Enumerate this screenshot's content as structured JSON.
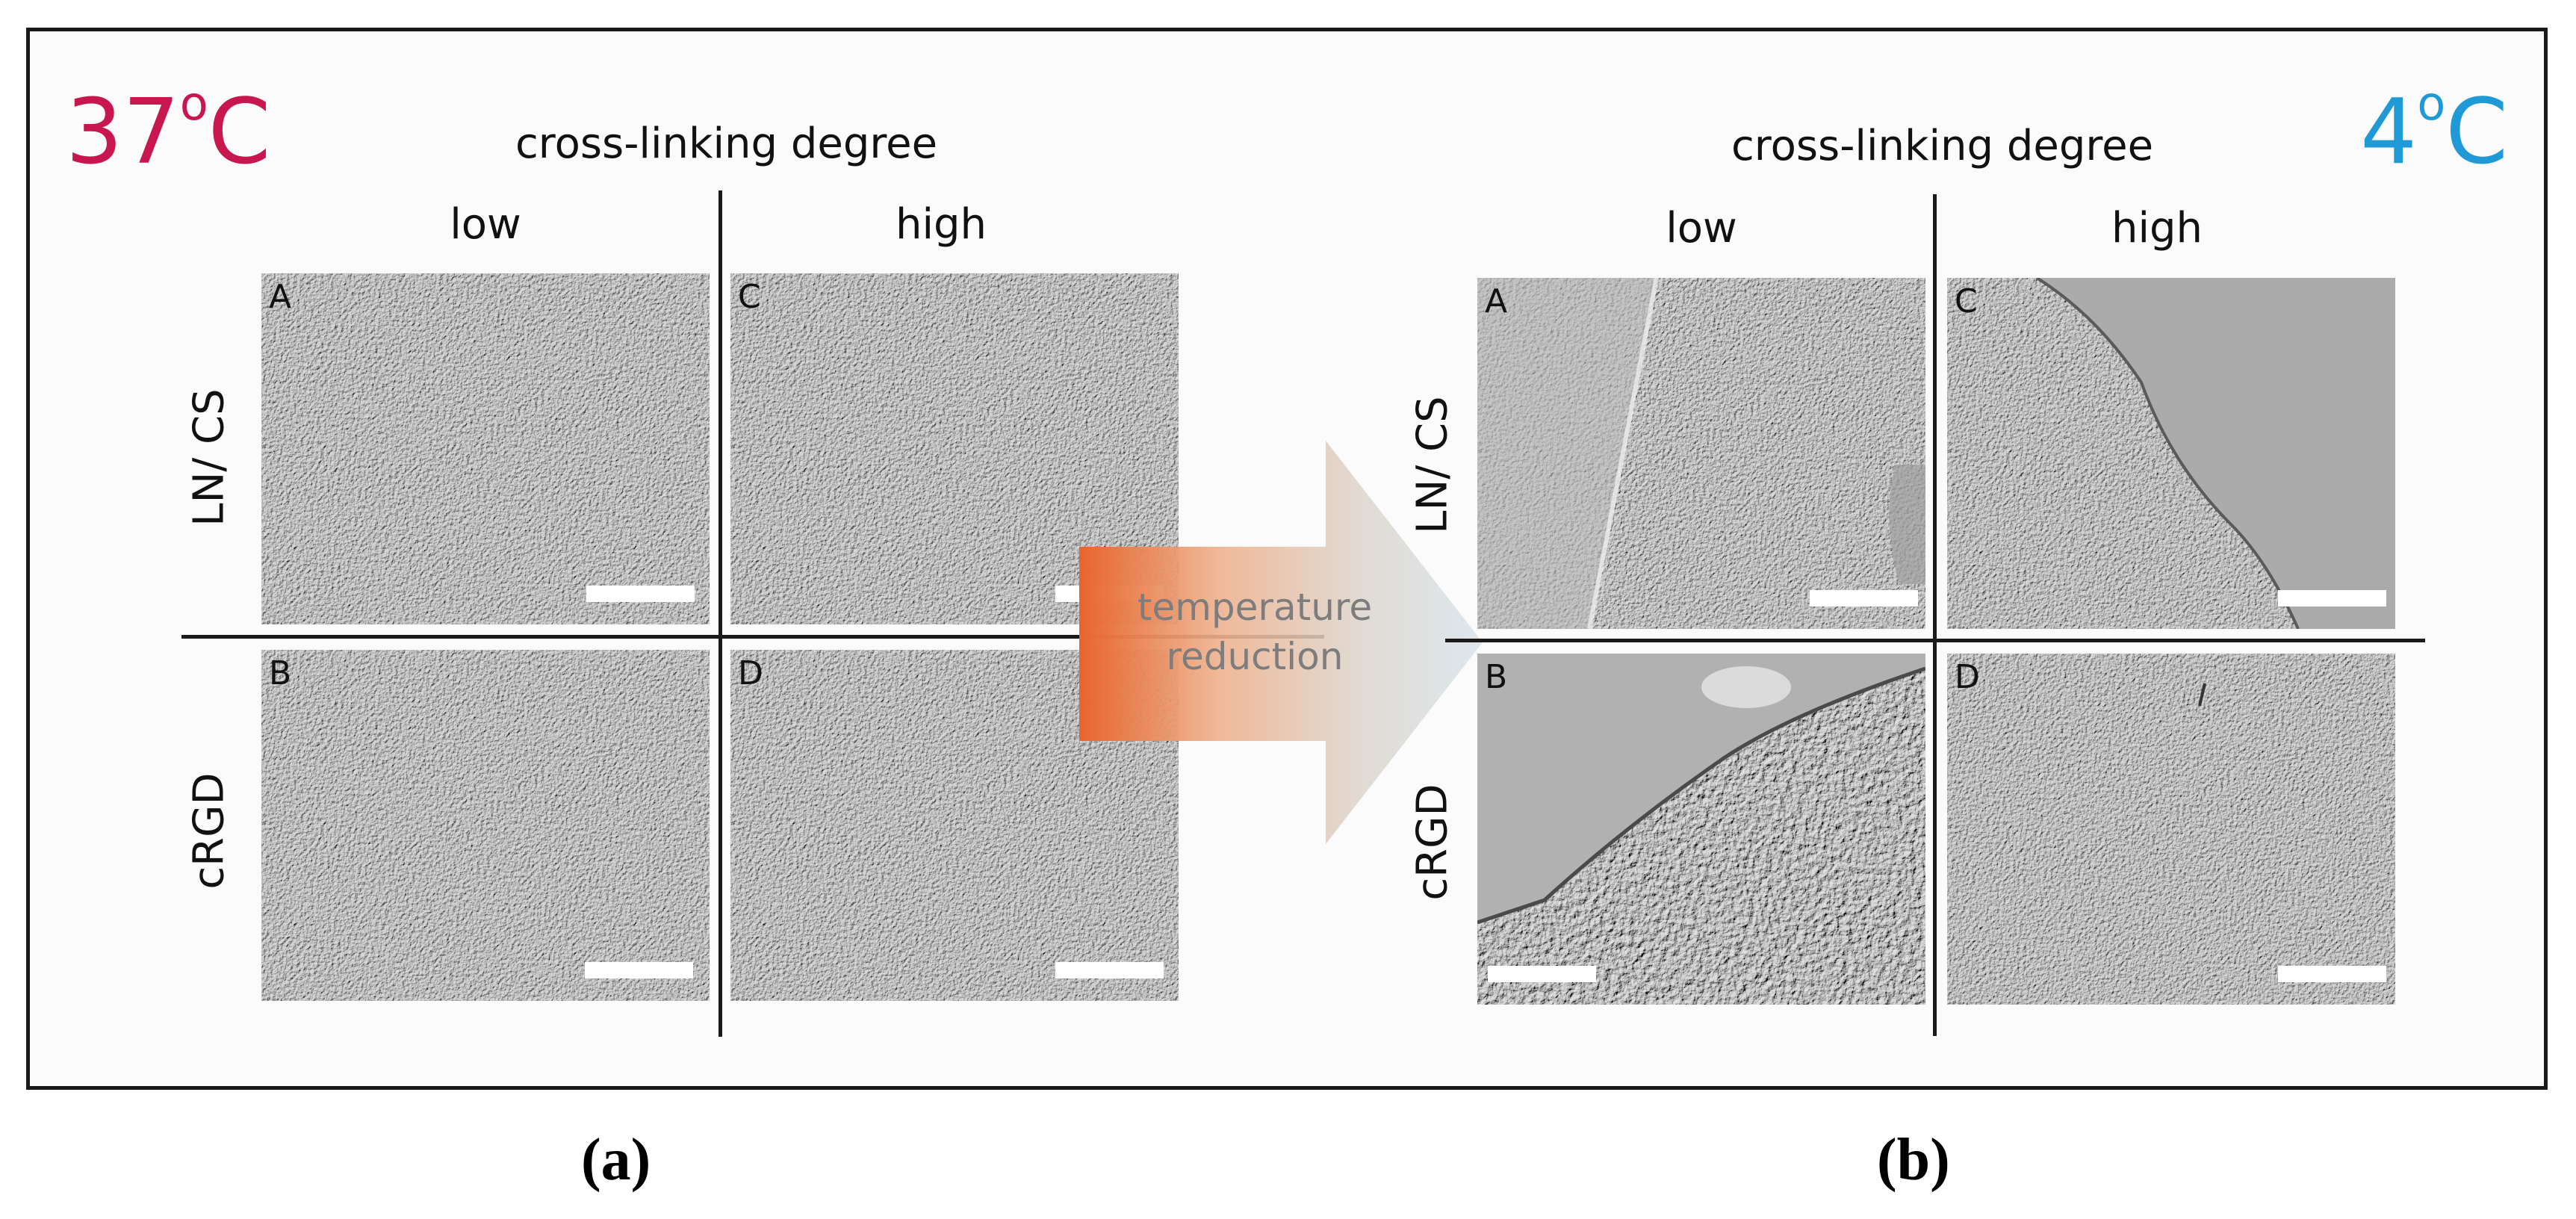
{
  "left": {
    "temperature": "37",
    "temperature_unit": "C",
    "temperature_degree": "o",
    "temperature_color": "#c8174f",
    "header": "cross-linking degree",
    "col_low": "low",
    "col_high": "high",
    "row_top": "LN/ CS",
    "row_bottom": "cRGD",
    "panels": [
      {
        "label": "A"
      },
      {
        "label": "C"
      },
      {
        "label": "B"
      },
      {
        "label": "D"
      }
    ]
  },
  "right": {
    "temperature": "4",
    "temperature_unit": "C",
    "temperature_degree": "o",
    "temperature_color": "#1f9ad6",
    "header": "cross-linking degree",
    "col_low": "low",
    "col_high": "high",
    "row_top": "LN/ CS",
    "row_bottom": "cRGD",
    "panels": [
      {
        "label": "A"
      },
      {
        "label": "C"
      },
      {
        "label": "B"
      },
      {
        "label": "D"
      }
    ]
  },
  "arrow": {
    "line1": "temperature",
    "line2": "reduction",
    "color_start": "#e8652c",
    "color_end": "#d8cfc4"
  },
  "captions": {
    "a": "(a)",
    "b": "(b)"
  }
}
